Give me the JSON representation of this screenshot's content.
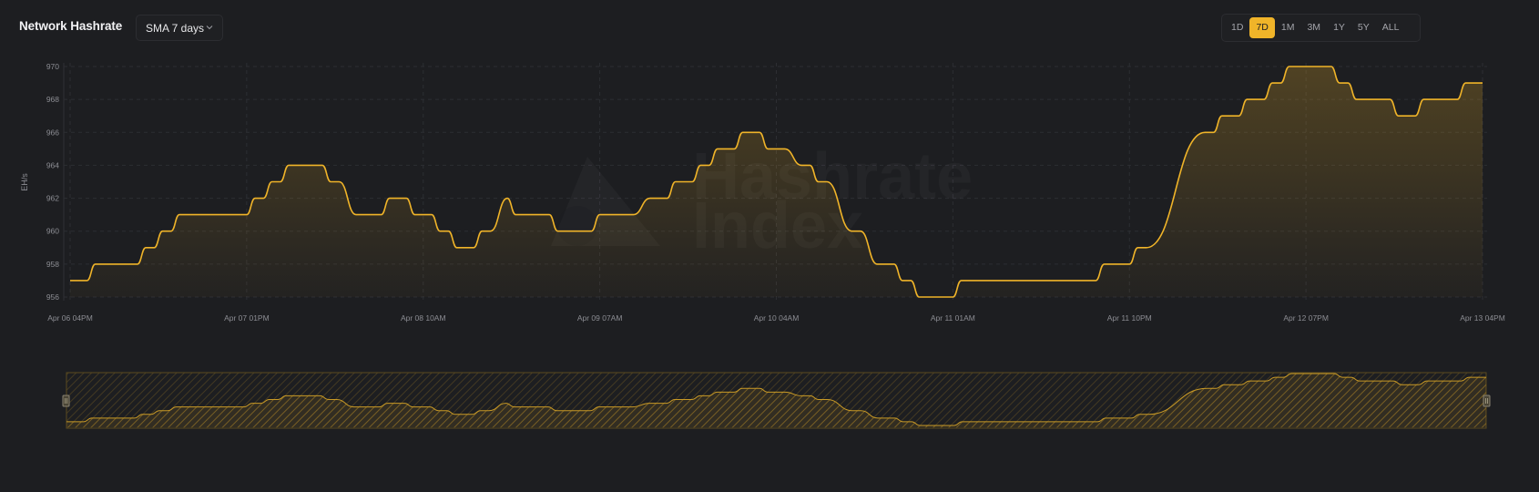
{
  "header": {
    "title": "Network Hashrate",
    "smoothing_select": {
      "value": "SMA 7 days",
      "icon": "chevron-down-icon"
    },
    "ranges": [
      {
        "label": "1D",
        "active": false
      },
      {
        "label": "7D",
        "active": true
      },
      {
        "label": "1M",
        "active": false
      },
      {
        "label": "3M",
        "active": false
      },
      {
        "label": "1Y",
        "active": false
      },
      {
        "label": "5Y",
        "active": false
      },
      {
        "label": "ALL",
        "active": false
      }
    ]
  },
  "watermark": {
    "line1": "Hashrate",
    "line2": "Index"
  },
  "colors": {
    "accent": "#f0b429",
    "background": "#1d1e21",
    "grid": "#2d2e33",
    "axis_text": "#8c8d93"
  },
  "chart_data": {
    "type": "area",
    "title": "Network Hashrate",
    "ylabel": "EH/s",
    "xlabel": "",
    "ylim": [
      956,
      970
    ],
    "yticks": [
      956,
      958,
      960,
      962,
      964,
      966,
      968,
      970
    ],
    "xticks": [
      "Apr 06 04PM",
      "Apr 07 01PM",
      "Apr 08 10AM",
      "Apr 09 07AM",
      "Apr 10 04AM",
      "Apr 11 01AM",
      "Apr 11 10PM",
      "Apr 12 07PM",
      "Apr 13 04PM"
    ],
    "grid": true,
    "legend": "none",
    "smoothing": "SMA 7 days",
    "x_unit": "hours since Apr 06 04PM",
    "series": [
      {
        "name": "Network Hashrate",
        "points": [
          [
            0,
            957
          ],
          [
            2,
            957
          ],
          [
            3,
            958
          ],
          [
            8,
            958
          ],
          [
            9,
            959
          ],
          [
            10,
            959
          ],
          [
            11,
            960
          ],
          [
            12,
            960
          ],
          [
            13,
            961
          ],
          [
            21,
            961
          ],
          [
            22,
            962
          ],
          [
            23,
            962
          ],
          [
            24,
            963
          ],
          [
            25,
            963
          ],
          [
            26,
            964
          ],
          [
            30,
            964
          ],
          [
            31,
            963
          ],
          [
            32,
            963
          ],
          [
            34,
            961
          ],
          [
            37,
            961
          ],
          [
            38,
            962
          ],
          [
            40,
            962
          ],
          [
            41,
            961
          ],
          [
            43,
            961
          ],
          [
            44,
            960
          ],
          [
            45,
            960
          ],
          [
            46,
            959
          ],
          [
            48,
            959
          ],
          [
            49,
            960
          ],
          [
            50,
            960
          ],
          [
            52,
            962
          ],
          [
            53,
            961
          ],
          [
            57,
            961
          ],
          [
            58,
            960
          ],
          [
            62,
            960
          ],
          [
            63,
            961
          ],
          [
            67,
            961
          ],
          [
            69,
            962
          ],
          [
            71,
            962
          ],
          [
            72,
            963
          ],
          [
            74,
            963
          ],
          [
            75,
            964
          ],
          [
            76,
            964
          ],
          [
            77,
            965
          ],
          [
            79,
            965
          ],
          [
            80,
            966
          ],
          [
            81,
            966
          ],
          [
            82,
            966
          ],
          [
            83,
            965
          ],
          [
            85,
            965
          ],
          [
            87,
            964
          ],
          [
            88,
            964
          ],
          [
            89,
            963
          ],
          [
            90,
            963
          ],
          [
            93,
            960
          ],
          [
            94,
            960
          ],
          [
            96,
            958
          ],
          [
            98,
            958
          ],
          [
            99,
            957
          ],
          [
            100,
            957
          ],
          [
            101,
            956
          ],
          [
            105,
            956
          ],
          [
            106,
            957
          ],
          [
            122,
            957
          ],
          [
            123,
            958
          ],
          [
            126,
            958
          ],
          [
            127,
            959
          ],
          [
            128,
            959
          ],
          [
            135,
            966
          ],
          [
            136,
            966
          ],
          [
            137,
            967
          ],
          [
            139,
            967
          ],
          [
            140,
            968
          ],
          [
            142,
            968
          ],
          [
            143,
            969
          ],
          [
            144,
            969
          ],
          [
            145,
            970
          ],
          [
            150,
            970
          ],
          [
            151,
            969
          ],
          [
            152,
            969
          ],
          [
            153,
            968
          ],
          [
            157,
            968
          ],
          [
            158,
            967
          ],
          [
            160,
            967
          ],
          [
            161,
            968
          ],
          [
            165,
            968
          ],
          [
            166,
            969
          ],
          [
            168,
            969
          ]
        ]
      }
    ]
  },
  "navigator": {
    "handle_left_icon": "drag-handle-icon",
    "handle_right_icon": "drag-handle-icon"
  }
}
